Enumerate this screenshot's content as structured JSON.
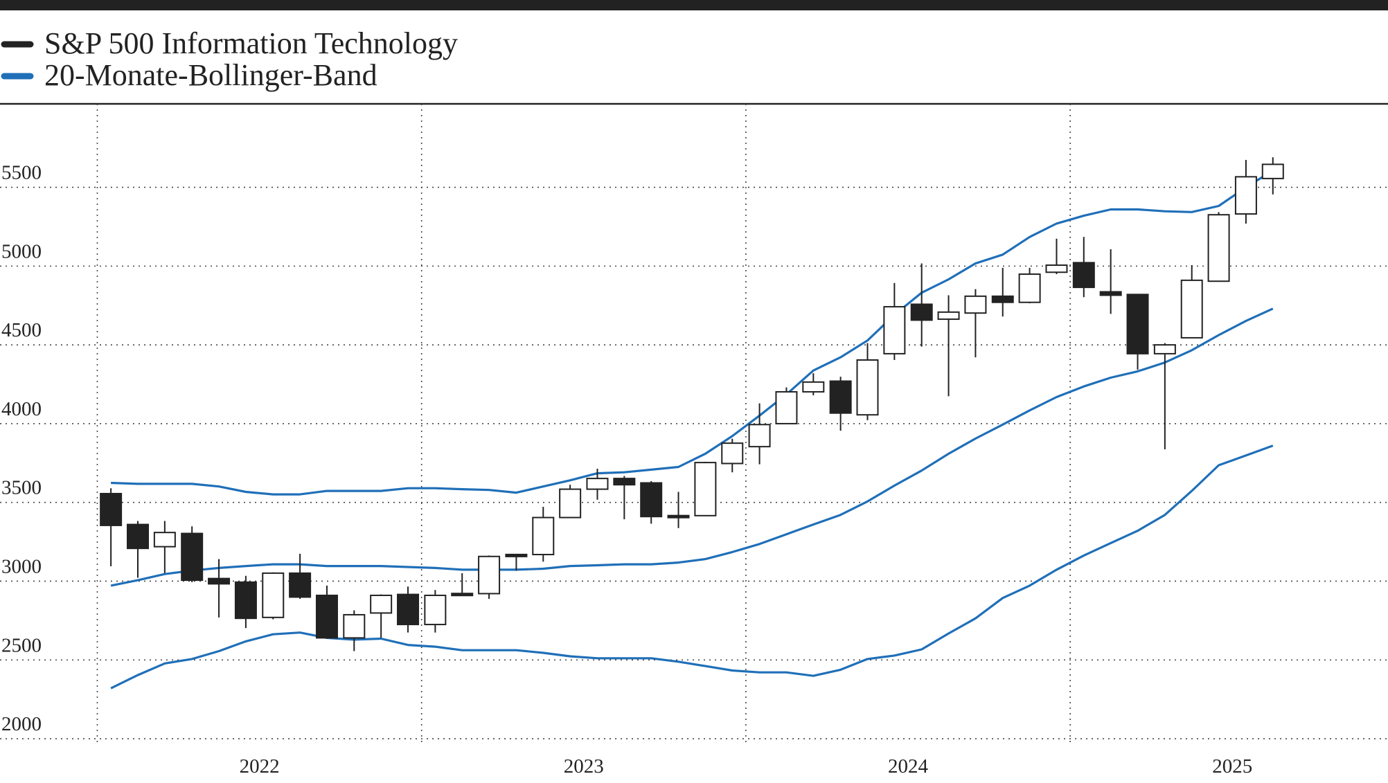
{
  "chart_data": {
    "type": "candlestick",
    "x": [
      2022.042,
      2022.125,
      2022.208,
      2022.292,
      2022.375,
      2022.458,
      2022.542,
      2022.625,
      2022.708,
      2022.792,
      2022.875,
      2022.958,
      2023.042,
      2023.125,
      2023.208,
      2023.292,
      2023.375,
      2023.458,
      2023.542,
      2023.625,
      2023.708,
      2023.792,
      2023.875,
      2023.958,
      2024.042,
      2024.125,
      2024.208,
      2024.292,
      2024.375,
      2024.458,
      2024.542,
      2024.625,
      2024.708,
      2024.792,
      2024.875,
      2024.958,
      2025.042,
      2025.125,
      2025.208,
      2025.292,
      2025.375,
      2025.458,
      2025.542,
      2025.625
    ],
    "series": [
      {
        "name": "S&P 500 Information Technology",
        "color": "#222222",
        "open": [
          3556,
          3360,
          3219,
          3303,
          3017,
          2994,
          2770,
          3051,
          2910,
          2640,
          2798,
          2916,
          2725,
          2921,
          2921,
          3169,
          3169,
          3404,
          3584,
          3652,
          3624,
          3416,
          3416,
          3747,
          3854,
          4000,
          4202,
          4270,
          4056,
          4444,
          4758,
          4663,
          4702,
          4809,
          4770,
          4961,
          5022,
          4837,
          4820,
          4444,
          4545,
          4904,
          5331,
          5556
        ],
        "high": [
          3590,
          3382,
          3382,
          3348,
          3140,
          3034,
          3056,
          3174,
          2972,
          2815,
          2916,
          2966,
          2944,
          3051,
          3163,
          3169,
          3472,
          3612,
          3714,
          3668,
          3635,
          3567,
          3758,
          3904,
          4129,
          4230,
          4320,
          4298,
          4511,
          4893,
          5017,
          4815,
          4854,
          4989,
          4989,
          5174,
          5185,
          5107,
          4820,
          4511,
          5006,
          5343,
          5674,
          5691
        ],
        "low": [
          3095,
          3022,
          3051,
          2994,
          2770,
          2702,
          2758,
          2888,
          2635,
          2556,
          2640,
          2674,
          2674,
          2910,
          2888,
          3067,
          3124,
          3404,
          3517,
          3393,
          3365,
          3337,
          3416,
          3691,
          3742,
          4000,
          4180,
          3955,
          4022,
          4404,
          4489,
          4174,
          4421,
          4680,
          4764,
          4949,
          4803,
          4697,
          4343,
          3837,
          4545,
          4904,
          5270,
          5455
        ],
        "close": [
          3354,
          3208,
          3309,
          3006,
          2983,
          2764,
          3051,
          2899,
          2640,
          2787,
          2910,
          2725,
          2910,
          2910,
          3157,
          3157,
          3404,
          3584,
          3652,
          3612,
          3410,
          3404,
          3753,
          3876,
          3994,
          4202,
          4264,
          4067,
          4404,
          4742,
          4657,
          4708,
          4809,
          4770,
          4949,
          5006,
          4865,
          4815,
          4444,
          4500,
          4910,
          5326,
          5567,
          5646
        ]
      },
      {
        "name": "20-Monate-Bollinger-Band",
        "color": "#1f6fb8",
        "upper": [
          3624,
          3618,
          3618,
          3618,
          3601,
          3567,
          3551,
          3551,
          3573,
          3573,
          3573,
          3590,
          3590,
          3584,
          3579,
          3562,
          3601,
          3640,
          3685,
          3691,
          3708,
          3725,
          3809,
          3921,
          4051,
          4185,
          4337,
          4421,
          4528,
          4691,
          4831,
          4916,
          5017,
          5073,
          5185,
          5270,
          5320,
          5360,
          5360,
          5348,
          5343,
          5382,
          5500,
          5607
        ],
        "middle": [
          2972,
          3006,
          3045,
          3067,
          3084,
          3096,
          3107,
          3107,
          3096,
          3096,
          3096,
          3090,
          3084,
          3073,
          3073,
          3073,
          3079,
          3096,
          3101,
          3107,
          3107,
          3118,
          3140,
          3185,
          3236,
          3298,
          3360,
          3421,
          3506,
          3607,
          3702,
          3809,
          3905,
          3994,
          4084,
          4169,
          4236,
          4292,
          4332,
          4388,
          4466,
          4562,
          4652,
          4730
        ],
        "lower": [
          2320,
          2404,
          2478,
          2506,
          2556,
          2618,
          2663,
          2674,
          2640,
          2629,
          2635,
          2595,
          2584,
          2562,
          2562,
          2562,
          2545,
          2523,
          2511,
          2511,
          2511,
          2489,
          2461,
          2433,
          2421,
          2421,
          2399,
          2438,
          2506,
          2528,
          2567,
          2668,
          2764,
          2893,
          2972,
          3073,
          3163,
          3242,
          3320,
          3421,
          3573,
          3736,
          3798,
          3860
        ]
      }
    ],
    "xlim": [
      2021.7,
      2025.98
    ],
    "xticks": [
      2022,
      2023,
      2024,
      2025
    ],
    "ylim": [
      1965,
      6030
    ],
    "yticks": [
      2000,
      2500,
      3000,
      3500,
      4000,
      4500,
      5000,
      5500
    ],
    "grid": true
  }
}
